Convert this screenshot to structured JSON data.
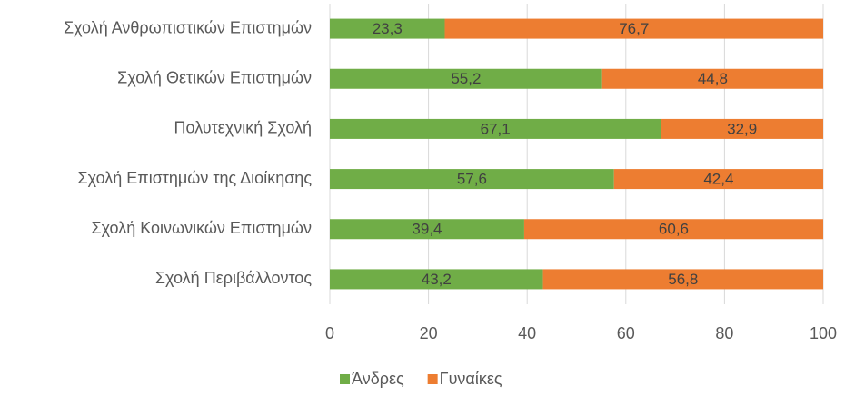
{
  "chart_data": {
    "type": "bar",
    "orientation": "horizontal",
    "stacked": true,
    "categories": [
      "Σχολή Ανθρωπιστικών Επιστημών",
      "Σχολή Θετικών Επιστημών",
      "Πολυτεχνική Σχολή",
      "Σχολή Επιστημών της Διοίκησης",
      "Σχολή Κοινωνικών Επιστημών",
      "Σχολή Περιβάλλοντος"
    ],
    "series": [
      {
        "name": "Άνδρες",
        "color": "#70ad47",
        "values": [
          23.3,
          55.2,
          67.1,
          57.6,
          39.4,
          43.2
        ],
        "value_labels": [
          "23,3",
          "55,2",
          "67,1",
          "57,6",
          "39,4",
          "43,2"
        ]
      },
      {
        "name": "Γυναίκες",
        "color": "#ed7d31",
        "values": [
          76.7,
          44.8,
          32.9,
          42.4,
          60.6,
          56.8
        ],
        "value_labels": [
          "76,7",
          "44,8",
          "32,9",
          "42,4",
          "60,6",
          "56,8"
        ]
      }
    ],
    "xlim": [
      0,
      100
    ],
    "xticks": [
      0,
      20,
      40,
      60,
      80,
      100
    ],
    "grid": true,
    "legend": "bottom"
  }
}
